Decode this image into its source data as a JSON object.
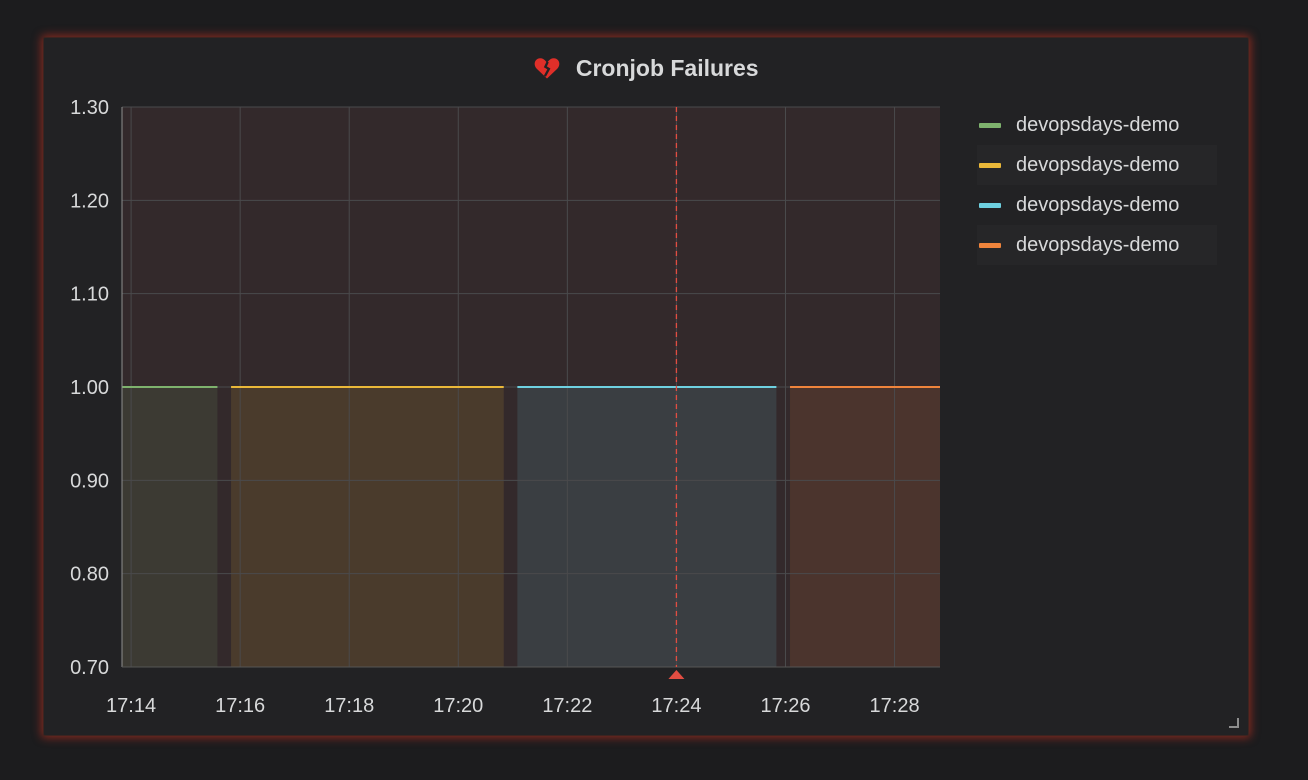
{
  "panel": {
    "title": "Cronjob Failures",
    "title_icon": "heart-broken-icon"
  },
  "legend": {
    "items": [
      {
        "label": "devopsdays-demo",
        "color": "#7eb26d"
      },
      {
        "label": "devopsdays-demo",
        "color": "#eab839"
      },
      {
        "label": "devopsdays-demo",
        "color": "#6ed0e0"
      },
      {
        "label": "devopsdays-demo",
        "color": "#ef843c"
      }
    ]
  },
  "colors": {
    "threshold_fill": "#33292b",
    "grid": "#4a4a4c",
    "crosshair": "#e24d42",
    "axis_text": "#d8d9da"
  },
  "chart_data": {
    "type": "area",
    "title": "Cronjob Failures",
    "xlabel": "",
    "ylabel": "",
    "x_ticks": [
      "17:14",
      "17:16",
      "17:18",
      "17:20",
      "17:22",
      "17:24",
      "17:26",
      "17:28"
    ],
    "y_ticks": [
      "0.70",
      "0.80",
      "0.90",
      "1.00",
      "1.10",
      "1.20",
      "1.30"
    ],
    "xlim": [
      "17:13:50",
      "17:28:50"
    ],
    "ylim": [
      0.7,
      1.3
    ],
    "threshold_region": {
      "from": 0.7,
      "to": 1.3
    },
    "crosshair_x": "17:24",
    "grid": true,
    "legend_position": "right",
    "series": [
      {
        "name": "devopsdays-demo",
        "color": "#7eb26d",
        "start": "17:13:50",
        "end": "17:15:35",
        "value": 1.0
      },
      {
        "name": "devopsdays-demo",
        "color": "#eab839",
        "start": "17:15:50",
        "end": "17:20:50",
        "value": 1.0
      },
      {
        "name": "devopsdays-demo",
        "color": "#6ed0e0",
        "start": "17:21:05",
        "end": "17:25:50",
        "value": 1.0
      },
      {
        "name": "devopsdays-demo",
        "color": "#ef843c",
        "start": "17:26:05",
        "end": "17:28:50",
        "value": 1.0
      }
    ]
  }
}
